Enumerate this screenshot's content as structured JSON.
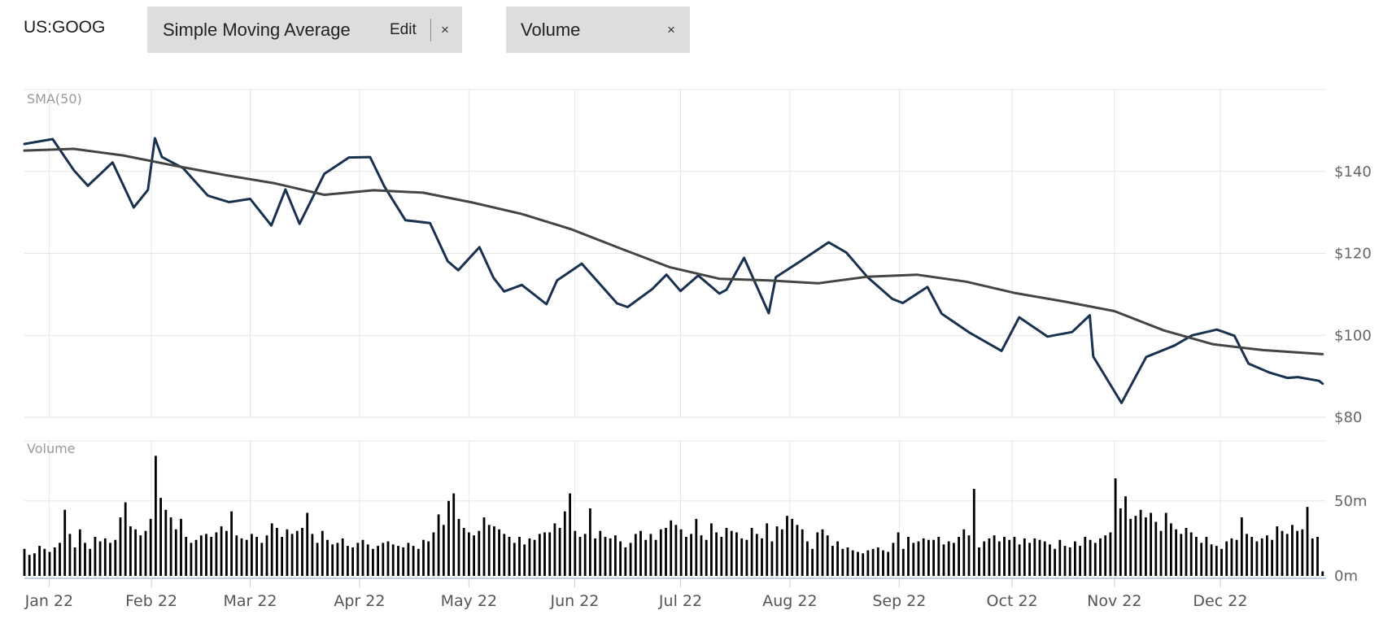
{
  "header": {
    "ticker": "US:GOOG",
    "indicator_pill": {
      "label": "Simple Moving Average",
      "edit_label": "Edit",
      "close_label": "×"
    },
    "volume_pill": {
      "label": "Volume",
      "close_label": "×"
    }
  },
  "chart_data": [
    {
      "type": "line",
      "panel_label": "SMA(50)",
      "x_tick_labels": [
        "Jan 22",
        "Feb 22",
        "Mar 22",
        "Apr 22",
        "May 22",
        "Jun 22",
        "Jul 22",
        "Aug 22",
        "Sep 22",
        "Oct 22",
        "Nov 22",
        "Dec 22"
      ],
      "x_tick_dates": [
        "2022-01-03",
        "2022-02-01",
        "2022-03-01",
        "2022-04-01",
        "2022-05-02",
        "2022-06-01",
        "2022-07-01",
        "2022-08-01",
        "2022-09-01",
        "2022-10-03",
        "2022-11-01",
        "2022-12-01"
      ],
      "ylim": [
        80,
        160
      ],
      "y_tick_labels": [
        "$140",
        "$120",
        "$100",
        "$80"
      ],
      "y_ticks": [
        140,
        120,
        100,
        80
      ],
      "grid": true,
      "series": [
        {
          "name": "",
          "color": "#17314f",
          "points": [
            [
              "2021-12-27",
              146.7
            ],
            [
              "2022-01-04",
              147.9
            ],
            [
              "2022-01-10",
              140.3
            ],
            [
              "2022-01-14",
              136.5
            ],
            [
              "2022-01-21",
              142.2
            ],
            [
              "2022-01-27",
              131.2
            ],
            [
              "2022-01-31",
              135.5
            ],
            [
              "2022-02-02",
              148.1
            ],
            [
              "2022-02-04",
              143.5
            ],
            [
              "2022-02-10",
              140.8
            ],
            [
              "2022-02-17",
              134.1
            ],
            [
              "2022-02-23",
              132.5
            ],
            [
              "2022-03-01",
              133.3
            ],
            [
              "2022-03-07",
              126.8
            ],
            [
              "2022-03-11",
              135.6
            ],
            [
              "2022-03-15",
              127.2
            ],
            [
              "2022-03-22",
              139.4
            ],
            [
              "2022-03-29",
              143.4
            ],
            [
              "2022-04-04",
              143.5
            ],
            [
              "2022-04-08",
              136.4
            ],
            [
              "2022-04-14",
              128.1
            ],
            [
              "2022-04-21",
              127.4
            ],
            [
              "2022-04-26",
              118.1
            ],
            [
              "2022-04-29",
              115.9
            ],
            [
              "2022-05-05",
              121.5
            ],
            [
              "2022-05-09",
              114.0
            ],
            [
              "2022-05-12",
              110.7
            ],
            [
              "2022-05-17",
              112.3
            ],
            [
              "2022-05-24",
              107.6
            ],
            [
              "2022-05-27",
              113.4
            ],
            [
              "2022-06-03",
              117.5
            ],
            [
              "2022-06-13",
              107.8
            ],
            [
              "2022-06-16",
              106.9
            ],
            [
              "2022-06-23",
              111.3
            ],
            [
              "2022-06-27",
              114.8
            ],
            [
              "2022-07-01",
              110.8
            ],
            [
              "2022-07-06",
              114.6
            ],
            [
              "2022-07-12",
              110.2
            ],
            [
              "2022-07-14",
              111.1
            ],
            [
              "2022-07-19",
              118.9
            ],
            [
              "2022-07-26",
              105.4
            ],
            [
              "2022-07-28",
              114.2
            ],
            [
              "2022-08-04",
              118.1
            ],
            [
              "2022-08-12",
              122.7
            ],
            [
              "2022-08-17",
              120.2
            ],
            [
              "2022-08-23",
              114.2
            ],
            [
              "2022-08-30",
              108.9
            ],
            [
              "2022-09-02",
              107.9
            ],
            [
              "2022-09-09",
              111.8
            ],
            [
              "2022-09-13",
              105.3
            ],
            [
              "2022-09-21",
              100.6
            ],
            [
              "2022-09-30",
              96.2
            ],
            [
              "2022-10-05",
              104.4
            ],
            [
              "2022-10-13",
              99.7
            ],
            [
              "2022-10-20",
              100.8
            ],
            [
              "2022-10-25",
              104.9
            ],
            [
              "2022-10-26",
              94.8
            ],
            [
              "2022-11-03",
              83.5
            ],
            [
              "2022-11-10",
              94.7
            ],
            [
              "2022-11-18",
              97.5
            ],
            [
              "2022-11-23",
              100.0
            ],
            [
              "2022-11-30",
              101.4
            ],
            [
              "2022-12-02",
              100.8
            ],
            [
              "2022-12-05",
              99.9
            ],
            [
              "2022-12-09",
              93.1
            ],
            [
              "2022-12-15",
              90.9
            ],
            [
              "2022-12-20",
              89.6
            ],
            [
              "2022-12-23",
              89.8
            ],
            [
              "2022-12-29",
              88.9
            ],
            [
              "2022-12-30",
              88.2
            ]
          ]
        },
        {
          "name": "",
          "color": "#444444",
          "points": [
            [
              "2021-12-27",
              145.1
            ],
            [
              "2022-01-10",
              145.5
            ],
            [
              "2022-01-24",
              143.9
            ],
            [
              "2022-02-07",
              141.5
            ],
            [
              "2022-02-22",
              139.1
            ],
            [
              "2022-03-08",
              137.1
            ],
            [
              "2022-03-22",
              134.3
            ],
            [
              "2022-04-05",
              135.4
            ],
            [
              "2022-04-19",
              134.8
            ],
            [
              "2022-05-03",
              132.4
            ],
            [
              "2022-05-17",
              129.6
            ],
            [
              "2022-05-31",
              125.9
            ],
            [
              "2022-06-14",
              121.2
            ],
            [
              "2022-06-28",
              116.6
            ],
            [
              "2022-07-12",
              113.8
            ],
            [
              "2022-07-26",
              113.4
            ],
            [
              "2022-08-09",
              112.7
            ],
            [
              "2022-08-23",
              114.3
            ],
            [
              "2022-09-06",
              114.8
            ],
            [
              "2022-09-20",
              113.1
            ],
            [
              "2022-10-04",
              110.3
            ],
            [
              "2022-10-18",
              108.2
            ],
            [
              "2022-11-01",
              105.9
            ],
            [
              "2022-11-15",
              101.2
            ],
            [
              "2022-11-29",
              97.8
            ],
            [
              "2022-12-13",
              96.4
            ],
            [
              "2022-12-30",
              95.4
            ]
          ]
        }
      ]
    },
    {
      "type": "bar",
      "panel_label": "Volume",
      "ylim": [
        0,
        90
      ],
      "y_tick_labels": [
        "50m",
        "0m"
      ],
      "y_ticks": [
        50,
        0
      ],
      "bar_color": "#000000",
      "start_date": "2021-12-27",
      "end_date": "2022-12-30",
      "values": [
        18,
        14,
        15,
        20,
        18,
        16,
        19,
        22,
        44,
        28,
        19,
        31,
        22,
        18,
        26,
        23,
        25,
        22,
        24,
        39,
        49,
        33,
        31,
        27,
        30,
        38,
        80,
        52,
        44,
        39,
        31,
        38,
        26,
        22,
        24,
        27,
        28,
        26,
        29,
        33,
        30,
        43,
        27,
        25,
        24,
        28,
        26,
        22,
        27,
        35,
        32,
        26,
        31,
        28,
        30,
        32,
        42,
        28,
        22,
        30,
        24,
        21,
        22,
        25,
        20,
        19,
        22,
        24,
        21,
        18,
        20,
        22,
        23,
        21,
        20,
        19,
        22,
        20,
        18,
        24,
        23,
        29,
        41,
        34,
        50,
        55,
        38,
        32,
        29,
        27,
        30,
        39,
        34,
        33,
        31,
        28,
        26,
        22,
        26,
        21,
        25,
        24,
        28,
        29,
        29,
        35,
        32,
        43,
        55,
        30,
        26,
        28,
        45,
        25,
        30,
        26,
        25,
        27,
        23,
        19,
        22,
        28,
        30,
        24,
        28,
        24,
        31,
        32,
        37,
        34,
        31,
        26,
        28,
        38,
        27,
        24,
        35,
        29,
        26,
        32,
        30,
        29,
        25,
        24,
        32,
        28,
        25,
        35,
        23,
        33,
        31,
        40,
        38,
        34,
        31,
        23,
        18,
        29,
        31,
        27,
        20,
        23,
        18,
        19,
        17,
        16,
        15,
        17,
        18,
        19,
        17,
        16,
        22,
        29,
        18,
        26,
        22,
        23,
        25,
        24,
        24,
        26,
        21,
        23,
        22,
        26,
        31,
        27,
        58,
        19,
        23,
        25,
        27,
        23,
        26,
        24,
        26,
        21,
        25,
        22,
        25,
        24,
        23,
        21,
        18,
        24,
        20,
        19,
        23,
        20,
        26,
        24,
        22,
        25,
        27,
        29,
        65,
        45,
        53,
        38,
        40,
        44,
        39,
        42,
        36,
        30,
        42,
        35,
        31,
        28,
        32,
        29,
        26,
        22,
        26,
        21,
        20,
        18,
        23,
        25,
        24,
        39,
        28,
        26,
        23,
        25,
        27,
        24,
        33,
        30,
        28,
        34,
        30,
        31,
        46,
        25,
        26,
        3
      ]
    }
  ]
}
